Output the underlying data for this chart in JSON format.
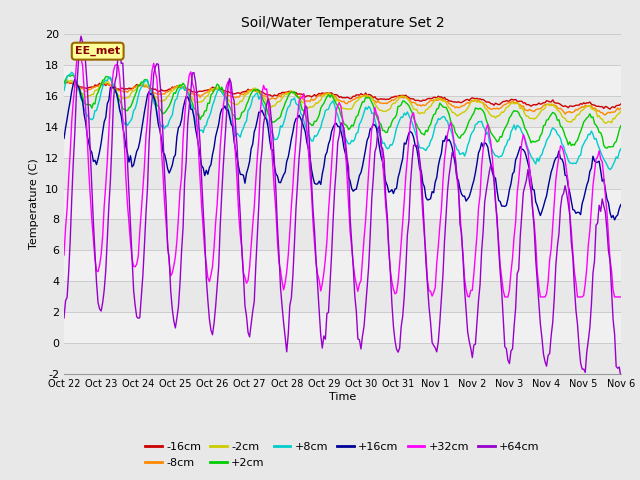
{
  "title": "Soil/Water Temperature Set 2",
  "xlabel": "Time",
  "ylabel": "Temperature (C)",
  "ylim": [
    -2,
    20
  ],
  "xlim": [
    0,
    360
  ],
  "x_tick_labels": [
    "Oct 22",
    "Oct 23",
    "Oct 24",
    "Oct 25",
    "Oct 26",
    "Oct 27",
    "Oct 28",
    "Oct 29",
    "Oct 30",
    "Oct 31",
    "Nov 1",
    "Nov 2",
    "Nov 3",
    "Nov 4",
    "Nov 5",
    "Nov 6"
  ],
  "x_tick_positions": [
    0,
    24,
    48,
    72,
    96,
    120,
    144,
    168,
    192,
    216,
    240,
    264,
    288,
    312,
    336,
    360
  ],
  "y_ticks": [
    -2,
    0,
    2,
    4,
    6,
    8,
    10,
    12,
    14,
    16,
    18,
    20
  ],
  "series_labels": [
    "-16cm",
    "-8cm",
    "-2cm",
    "+2cm",
    "+8cm",
    "+16cm",
    "+32cm",
    "+64cm"
  ],
  "series_colors": [
    "#cc0000",
    "#ff8800",
    "#cccc00",
    "#00cc00",
    "#00cccc",
    "#000099",
    "#ff00ff",
    "#9900cc"
  ],
  "annotation_text": "EE_met",
  "annotation_bg": "#ffff99",
  "annotation_border": "#996600",
  "background_color": "#e8e8e8",
  "band_color": "#f0f0f0"
}
